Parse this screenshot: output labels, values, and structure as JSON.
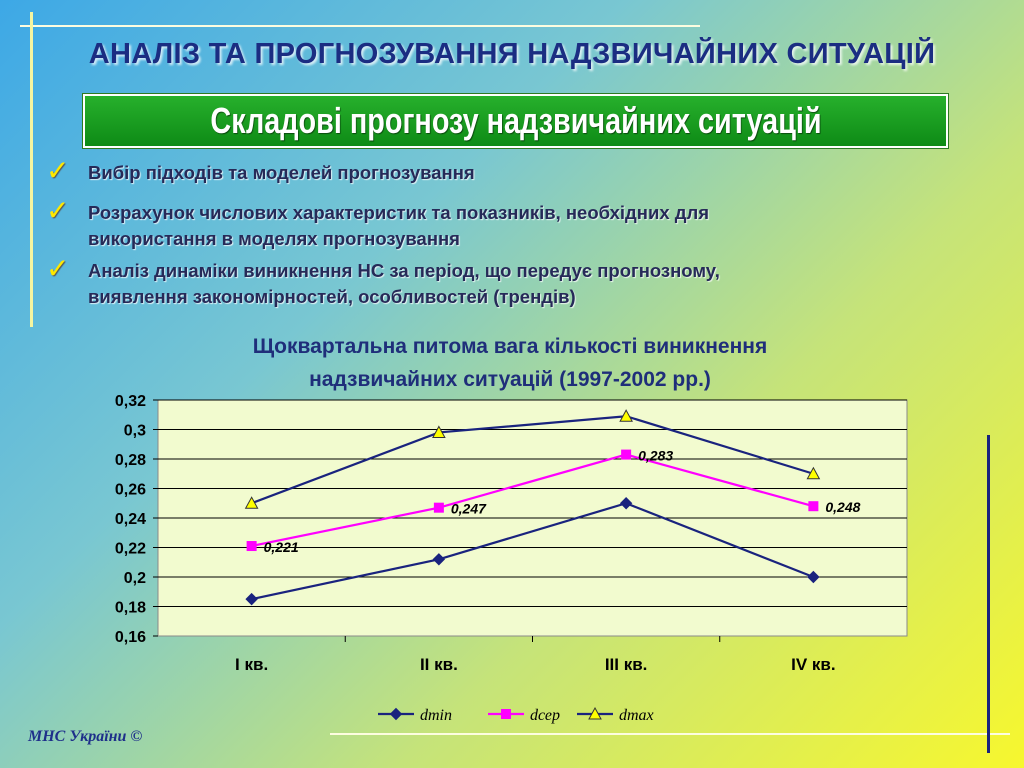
{
  "title": "АНАЛІЗ ТА ПРОГНОЗУВАННЯ НАДЗВИЧАЙНИХ СИТУАЦІЙ",
  "subtitle": "Складові прогнозу надзвичайних ситуацій",
  "bullets": [
    {
      "icon": "checkmark-icon",
      "lines": [
        "Вибір підходів та моделей прогнозування"
      ]
    },
    {
      "icon": "checkmark-icon",
      "lines": [
        "Розрахунок числових характеристик та показників, необхідних для",
        "використання в моделях прогнозування"
      ]
    },
    {
      "icon": "checkmark-icon",
      "lines": [
        "Аналіз динаміки виникнення НС за період, що передує прогнозному,",
        "виявлення закономірностей, особливостей (трендів)"
      ]
    }
  ],
  "footer": "МНС України ©",
  "colors": {
    "accent": "#1b2d82",
    "banner": "#1a9a22",
    "check": "#ffe800"
  },
  "chart_data": {
    "type": "line",
    "title_lines": [
      "Щоквартальна питома вага кількості виникнення",
      "надзвичайних ситуацій (1997-2002 рр.)"
    ],
    "categories": [
      "I кв.",
      "II кв.",
      "III кв.",
      "IV кв."
    ],
    "ylim": [
      0.16,
      0.32
    ],
    "yticks": [
      "0,16",
      "0,18",
      "0,2",
      "0,22",
      "0,24",
      "0,26",
      "0,28",
      "0,3",
      "0,32"
    ],
    "grid": true,
    "legend_position": "bottom",
    "series": [
      {
        "name": "dmin",
        "values": [
          0.185,
          0.212,
          0.25,
          0.2
        ],
        "color": "#1a237e",
        "marker": "diamond",
        "labels": [
          "",
          "",
          "",
          ""
        ]
      },
      {
        "name": "dсер",
        "values": [
          0.221,
          0.247,
          0.283,
          0.248
        ],
        "color": "#ff00ff",
        "marker": "square",
        "labels": [
          "0,221",
          "0,247",
          "0,283",
          "0,248"
        ]
      },
      {
        "name": "dmax",
        "values": [
          0.25,
          0.298,
          0.309,
          0.27
        ],
        "color": "#1a237e",
        "marker": "triangle",
        "labels": [
          "",
          "",
          "",
          ""
        ]
      }
    ]
  }
}
